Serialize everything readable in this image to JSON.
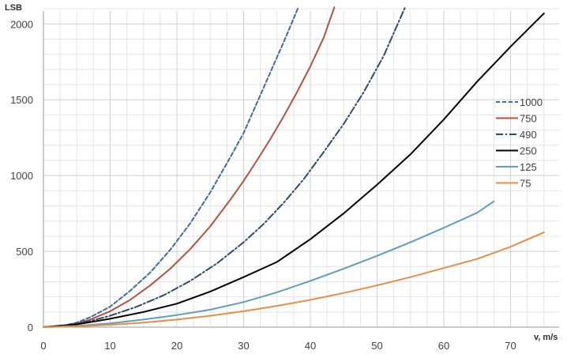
{
  "chart_data": {
    "type": "line",
    "title": "",
    "xlabel": "v, m/s",
    "ylabel": "LSB",
    "xlim": [
      0,
      76
    ],
    "ylim": [
      0,
      2000
    ],
    "x_ticks": [
      "0",
      "10",
      "20",
      "30",
      "40",
      "50",
      "60",
      "70"
    ],
    "y_ticks": [
      "0",
      "500",
      "1000",
      "1500",
      "2000"
    ],
    "x_tick_values": [
      0,
      10,
      20,
      30,
      40,
      50,
      60,
      70
    ],
    "y_tick_values": [
      0,
      500,
      1000,
      1500,
      2000
    ],
    "grid": true,
    "legend_position": "right",
    "series": [
      {
        "name": "1000",
        "color": "#44699e",
        "dash": "dashed",
        "x": [
          0,
          3,
          5,
          7,
          10,
          13,
          16,
          19,
          22,
          25,
          28,
          30,
          32,
          34,
          36,
          38.2
        ],
        "y": [
          0,
          10,
          30,
          65,
          135,
          240,
          360,
          510,
          685,
          890,
          1120,
          1280,
          1480,
          1680,
          1880,
          2110
        ]
      },
      {
        "name": "750",
        "color": "#b5523f",
        "dash": "solid",
        "x": [
          0,
          3,
          5,
          7,
          10,
          13,
          16,
          19,
          22,
          25,
          28,
          30,
          32,
          34,
          36,
          38,
          40,
          42,
          43.6
        ],
        "y": [
          0,
          8,
          24,
          50,
          105,
          180,
          275,
          385,
          515,
          665,
          840,
          965,
          1100,
          1240,
          1390,
          1550,
          1720,
          1910,
          2110
        ]
      },
      {
        "name": "490",
        "color": "#2e4a70",
        "dash": "dashdot",
        "x": [
          0,
          4,
          7,
          10,
          14,
          18,
          22,
          26,
          30,
          33,
          36,
          39,
          42,
          45,
          48,
          51,
          54.2
        ],
        "y": [
          0,
          15,
          40,
          75,
          135,
          210,
          305,
          420,
          560,
          680,
          820,
          975,
          1155,
          1340,
          1550,
          1790,
          2110
        ]
      },
      {
        "name": "250",
        "color": "#000000",
        "dash": "solid",
        "x": [
          0,
          5,
          10,
          15,
          20,
          25,
          30,
          35,
          40,
          45,
          50,
          55,
          60,
          65,
          70,
          75
        ],
        "y": [
          0,
          18,
          55,
          100,
          155,
          235,
          330,
          430,
          580,
          750,
          940,
          1140,
          1370,
          1620,
          1850,
          2070
        ]
      },
      {
        "name": "125",
        "color": "#5f9ebc",
        "dash": "solid",
        "x": [
          0,
          5,
          10,
          15,
          20,
          25,
          30,
          35,
          40,
          45,
          50,
          55,
          60,
          65,
          67.5
        ],
        "y": [
          0,
          8,
          25,
          50,
          80,
          115,
          165,
          230,
          305,
          385,
          470,
          560,
          655,
          755,
          830
        ]
      },
      {
        "name": "75",
        "color": "#e48f45",
        "dash": "solid",
        "x": [
          0,
          5,
          10,
          15,
          20,
          25,
          30,
          35,
          40,
          45,
          50,
          55,
          60,
          65,
          70,
          75
        ],
        "y": [
          0,
          5,
          15,
          30,
          50,
          75,
          105,
          140,
          180,
          225,
          275,
          330,
          390,
          450,
          530,
          625
        ]
      }
    ]
  }
}
